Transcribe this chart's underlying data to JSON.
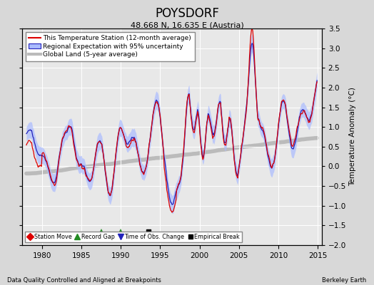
{
  "title": "POYSDORF",
  "subtitle": "48.668 N, 16.635 E (Austria)",
  "ylabel": "Temperature Anomaly (°C)",
  "xlabel_left": "Data Quality Controlled and Aligned at Breakpoints",
  "xlabel_right": "Berkeley Earth",
  "ylim": [
    -2.0,
    3.5
  ],
  "yticks": [
    -2,
    -1.5,
    -1,
    -0.5,
    0,
    0.5,
    1,
    1.5,
    2,
    2.5,
    3,
    3.5
  ],
  "xlim": [
    1977.5,
    2015.5
  ],
  "xticks": [
    1980,
    1985,
    1990,
    1995,
    2000,
    2005,
    2010,
    2015
  ],
  "bg_color": "#d8d8d8",
  "plot_bg_color": "#e8e8e8",
  "grid_color": "#ffffff",
  "station_color": "#dd0000",
  "regional_color": "#2222bb",
  "regional_fill": "#aabbff",
  "global_color": "#bbbbbb",
  "legend_items": [
    "This Temperature Station (12-month average)",
    "Regional Expectation with 95% uncertainty",
    "Global Land (5-year average)"
  ],
  "marker_events": {
    "record_gaps": [
      1987.5,
      1990.0
    ],
    "emp_break": [
      1993.5
    ]
  }
}
